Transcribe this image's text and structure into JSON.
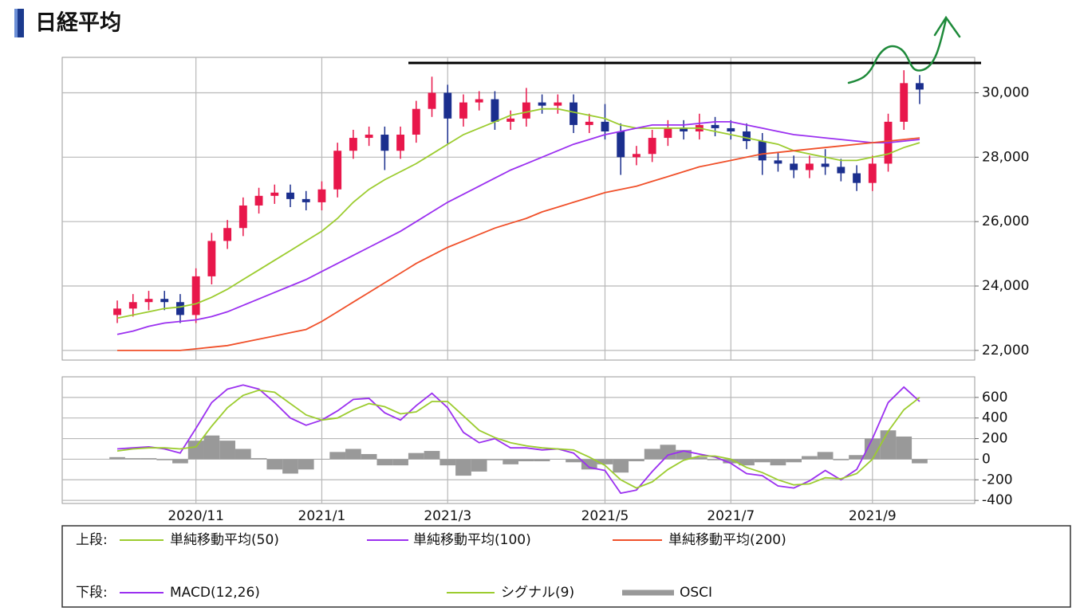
{
  "chart_data": [
    {
      "type": "candlestick",
      "title": "日経平均",
      "legend_label": "上段:",
      "categories": [
        null,
        null,
        null,
        null,
        null,
        null,
        null,
        null,
        "2020/11",
        null,
        null,
        null,
        null,
        null,
        null,
        null,
        "2021/1",
        null,
        null,
        null,
        null,
        null,
        null,
        null,
        "2021/3",
        null,
        null,
        null,
        null,
        null,
        null,
        null,
        null,
        null,
        "2021/5",
        null,
        null,
        null,
        null,
        null,
        null,
        null,
        "2021/7",
        null,
        null,
        null,
        null,
        null,
        null,
        null,
        null,
        "2021/9",
        null,
        null,
        null,
        null,
        null,
        null
      ],
      "open": [
        null,
        null,
        null,
        23100,
        23300,
        23500,
        23600,
        23500,
        23100,
        24300,
        25400,
        25800,
        26500,
        26800,
        26900,
        26700,
        26600,
        27000,
        28200,
        28600,
        28700,
        28200,
        28700,
        29500,
        30000,
        29200,
        29700,
        29800,
        29100,
        29200,
        29700,
        29600,
        29700,
        29000,
        29100,
        28800,
        28000,
        28100,
        28600,
        28900,
        28800,
        29000,
        28900,
        28800,
        28500,
        27900,
        27800,
        27600,
        27800,
        27700,
        27500,
        27200,
        27800,
        29100,
        30300,
        null,
        null,
        null
      ],
      "high": [
        null,
        null,
        null,
        23550,
        23750,
        23850,
        23850,
        23750,
        24550,
        25650,
        26050,
        26750,
        27050,
        27150,
        27150,
        26950,
        27250,
        28450,
        28850,
        28950,
        28950,
        28950,
        29750,
        30500,
        30250,
        29950,
        30050,
        30050,
        29450,
        30150,
        29950,
        29950,
        29950,
        29350,
        29650,
        29050,
        28350,
        28850,
        29150,
        29150,
        29350,
        29250,
        29150,
        29050,
        28750,
        28150,
        28050,
        28050,
        28250,
        27950,
        27750,
        28050,
        29350,
        30700,
        30550,
        null,
        null,
        null
      ],
      "low": [
        null,
        null,
        null,
        22850,
        23050,
        23250,
        23250,
        22850,
        22850,
        24050,
        25150,
        25550,
        26250,
        26550,
        26450,
        26350,
        26350,
        26750,
        27950,
        28350,
        27600,
        27950,
        28450,
        29250,
        28400,
        28950,
        29450,
        28850,
        28850,
        28950,
        29350,
        29350,
        28750,
        28750,
        28550,
        27450,
        27750,
        27850,
        28350,
        28550,
        28550,
        28650,
        28550,
        28250,
        27450,
        27550,
        27350,
        27350,
        27450,
        27250,
        26950,
        26950,
        27550,
        28850,
        29650,
        null,
        null,
        null
      ],
      "close": [
        null,
        null,
        null,
        23300,
        23500,
        23600,
        23500,
        23100,
        24300,
        25400,
        25800,
        26500,
        26800,
        26900,
        26700,
        26600,
        27000,
        28200,
        28600,
        28700,
        28200,
        28700,
        29500,
        30000,
        29200,
        29700,
        29800,
        29100,
        29200,
        29700,
        29600,
        29700,
        29000,
        29100,
        28800,
        28000,
        28100,
        28600,
        28900,
        28800,
        29000,
        28900,
        28800,
        28500,
        27900,
        27800,
        27600,
        27800,
        27700,
        27500,
        27200,
        27800,
        29100,
        30300,
        30100,
        null,
        null,
        null
      ],
      "up_color": "#e8174b",
      "down_color": "#1b2f8e",
      "series": [
        {
          "name": "単純移動平均(50)",
          "color": "#9ccc2f",
          "values": [
            null,
            null,
            null,
            23000,
            23100,
            23200,
            23300,
            23350,
            23450,
            23650,
            23900,
            24200,
            24500,
            24800,
            25100,
            25400,
            25700,
            26100,
            26600,
            27000,
            27300,
            27550,
            27800,
            28100,
            28400,
            28700,
            28900,
            29100,
            29300,
            29400,
            29500,
            29500,
            29400,
            29300,
            29200,
            29000,
            28900,
            28900,
            28900,
            28900,
            28900,
            28800,
            28700,
            28600,
            28500,
            28400,
            28200,
            28100,
            28000,
            27900,
            27900,
            28000,
            28100,
            28300,
            28450,
            null,
            null,
            null
          ]
        },
        {
          "name": "単純移動平均(100)",
          "color": "#9b30f0",
          "values": [
            null,
            null,
            null,
            22500,
            22600,
            22750,
            22850,
            22900,
            22950,
            23050,
            23200,
            23400,
            23600,
            23800,
            24000,
            24200,
            24450,
            24700,
            24950,
            25200,
            25450,
            25700,
            26000,
            26300,
            26600,
            26850,
            27100,
            27350,
            27600,
            27800,
            28000,
            28200,
            28400,
            28550,
            28700,
            28800,
            28900,
            29000,
            29000,
            29000,
            29050,
            29100,
            29100,
            29000,
            28900,
            28800,
            28700,
            28650,
            28600,
            28550,
            28500,
            28450,
            28450,
            28500,
            28550,
            null,
            null,
            null
          ]
        },
        {
          "name": "単純移動平均(200)",
          "color": "#f0502a",
          "values": [
            null,
            null,
            null,
            22000,
            22000,
            22000,
            22000,
            22000,
            22050,
            22100,
            22150,
            22250,
            22350,
            22450,
            22550,
            22650,
            22900,
            23200,
            23500,
            23800,
            24100,
            24400,
            24700,
            24950,
            25200,
            25400,
            25600,
            25800,
            25950,
            26100,
            26300,
            26450,
            26600,
            26750,
            26900,
            27000,
            27100,
            27250,
            27400,
            27550,
            27700,
            27800,
            27900,
            28000,
            28100,
            28150,
            28200,
            28250,
            28300,
            28350,
            28400,
            28450,
            28500,
            28550,
            28600,
            null,
            null,
            null
          ]
        }
      ],
      "ylim": [
        21700,
        31100
      ],
      "yticks": [
        {
          "value": 22000,
          "label": "22,000"
        },
        {
          "value": 24000,
          "label": "24,000"
        },
        {
          "value": 26000,
          "label": "26,000"
        },
        {
          "value": 28000,
          "label": "28,000"
        },
        {
          "value": 30000,
          "label": "30,000"
        }
      ],
      "grid": true
    },
    {
      "type": "macd",
      "legend_label": "下段:",
      "series": [
        {
          "name": "MACD(12,26)",
          "color": "#9b30f0",
          "style": "line",
          "values": [
            null,
            null,
            null,
            100,
            110,
            120,
            100,
            60,
            300,
            550,
            680,
            720,
            680,
            550,
            400,
            330,
            380,
            470,
            580,
            590,
            450,
            380,
            520,
            640,
            500,
            260,
            160,
            200,
            110,
            110,
            90,
            100,
            60,
            -80,
            -110,
            -330,
            -300,
            -120,
            40,
            80,
            50,
            20,
            -40,
            -140,
            -160,
            -260,
            -280,
            -210,
            -110,
            -200,
            -100,
            200,
            550,
            700,
            560,
            null,
            null,
            null
          ]
        },
        {
          "name": "シグナル(9)",
          "color": "#9ccc2f",
          "style": "line",
          "values": [
            null,
            null,
            null,
            80,
            100,
            110,
            110,
            100,
            120,
            320,
            500,
            620,
            670,
            650,
            540,
            430,
            380,
            400,
            480,
            540,
            510,
            440,
            460,
            560,
            560,
            420,
            280,
            210,
            160,
            130,
            110,
            100,
            90,
            20,
            -60,
            -200,
            -280,
            -220,
            -100,
            -10,
            30,
            30,
            0,
            -80,
            -130,
            -200,
            -250,
            -240,
            -180,
            -190,
            -140,
            0,
            270,
            480,
            600,
            null,
            null,
            null
          ]
        },
        {
          "name": "OSCI",
          "color": "#999999",
          "style": "bar",
          "values": [
            null,
            null,
            null,
            20,
            10,
            10,
            -10,
            -40,
            180,
            230,
            180,
            100,
            10,
            -100,
            -140,
            -100,
            0,
            70,
            100,
            50,
            -60,
            -60,
            60,
            80,
            -60,
            -160,
            -120,
            -10,
            -50,
            -20,
            -20,
            0,
            -30,
            -100,
            -50,
            -130,
            -20,
            100,
            140,
            90,
            20,
            -10,
            -40,
            -60,
            -30,
            -60,
            -30,
            30,
            70,
            -10,
            40,
            200,
            280,
            220,
            -40,
            null,
            null,
            null
          ]
        }
      ],
      "ylim": [
        -430,
        800
      ],
      "yticks": [
        -400,
        -200,
        0,
        200,
        400,
        600
      ],
      "grid": true
    }
  ]
}
